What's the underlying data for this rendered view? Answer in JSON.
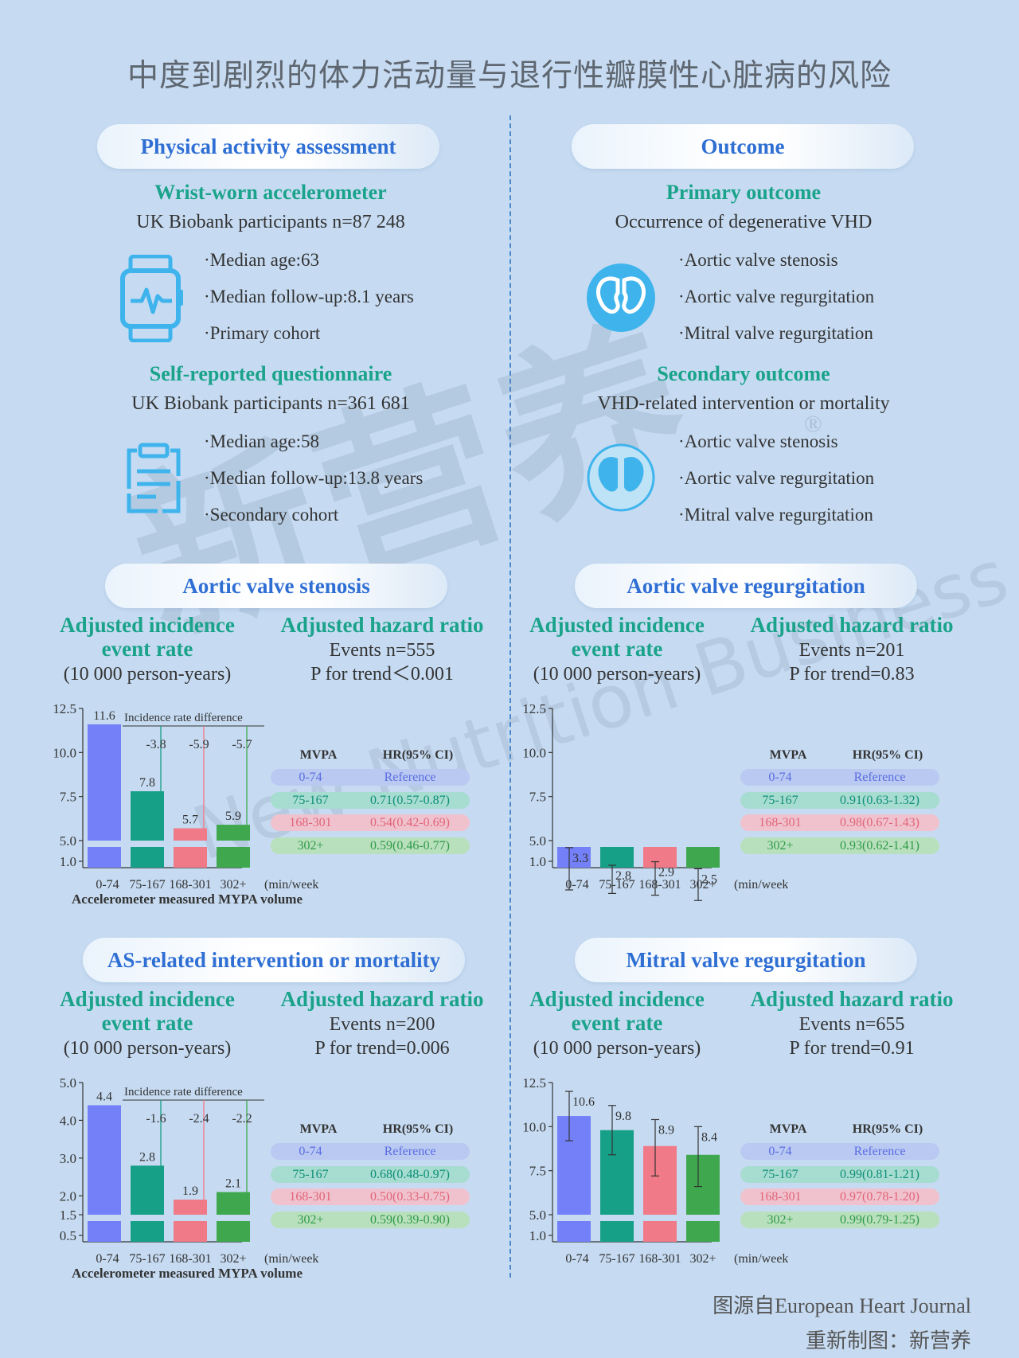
{
  "title": "中度到剧烈的体力活动量与退行性瓣膜性心脏病的风险",
  "watermark": {
    "main": "新营养",
    "sub": "New Nutrition Business",
    "reg": "®"
  },
  "pa": {
    "pill": "Physical activity assessment",
    "acc": {
      "head": "Wrist-worn accelerometer",
      "sub": "UK Biobank participants  n=87 248",
      "items": [
        "·Median age:63",
        "·Median follow-up:8.1 years",
        "·Primary cohort"
      ],
      "icon": "smartwatch-icon"
    },
    "sr": {
      "head": "Self-reported questionnaire",
      "sub": "UK Biobank participants  n=361 681",
      "items": [
        "·Median age:58",
        "·Median follow-up:13.8 years",
        "·Secondary cohort"
      ],
      "icon": "clipboard-icon"
    }
  },
  "oc": {
    "pill": "Outcome",
    "primary": {
      "head": "Primary outcome",
      "sub": "Occurrence of degenerative VHD",
      "items": [
        "·Aortic valve stenosis",
        "·Aortic valve regurgitation",
        "·Mitral valve regurgitation"
      ],
      "icon": "heart-valve-icon"
    },
    "secondary": {
      "head": "Secondary outcome",
      "sub": "VHD-related intervention or mortality",
      "items": [
        "·Aortic valve stenosis",
        "·Aortic valve regurgitation",
        "·Mitral valve regurgitation"
      ],
      "icon": "heart-valve-outline-icon"
    }
  },
  "common": {
    "inc_head1": "Adjusted incidence",
    "inc_head2": "event rate",
    "inc_unit": "(10 000 person-years)",
    "hr_head": "Adjusted hazard ratio",
    "col_mvpa": "MVPA",
    "col_hr": "HR(95% CI)",
    "unit_label": "(min/week)",
    "xaxis_label": "Accelerometer measured MYPA volume",
    "diff_label": "Incidence rate difference"
  },
  "colors": {
    "c0": "#7380f8",
    "c1": "#17a088",
    "c2": "#f07a88",
    "c3": "#3fa84e"
  },
  "chart_data": [
    {
      "type": "bar",
      "title": "Aortic valve stenosis",
      "events": "Events n=555",
      "ptrend": "P for trend＜0.001",
      "categories": [
        "0-74",
        "75-167",
        "168-301",
        "302+"
      ],
      "values": [
        11.6,
        7.8,
        5.7,
        5.9
      ],
      "value_labels": [
        "11.6",
        "7.8",
        "5.7",
        "5.9"
      ],
      "diffs": [
        "-3.8",
        "-5.9",
        "-5.7"
      ],
      "yticks": [
        "12.5",
        "10.0",
        "7.5",
        "5.0",
        "1.0"
      ],
      "ylim": [
        1.0,
        12.5
      ],
      "show_xlabel": true,
      "error_bars": false,
      "hr": [
        {
          "mvpa": "0-74",
          "hr": "Reference"
        },
        {
          "mvpa": "75-167",
          "hr": "0.71(0.57-0.87)"
        },
        {
          "mvpa": "168-301",
          "hr": "0.54(0.42-0.69)"
        },
        {
          "mvpa": "302+",
          "hr": "0.59(0.46-0.77)"
        }
      ]
    },
    {
      "type": "bar",
      "title": "Aortic valve regurgitation",
      "events": "Events n=201",
      "ptrend": "P for trend=0.83",
      "categories": [
        "0-74",
        "75-167",
        "168-301",
        "302+"
      ],
      "values": [
        3.3,
        2.8,
        2.9,
        2.5
      ],
      "value_labels": [
        "3.3",
        "2.8",
        "2.9",
        "2.5"
      ],
      "errors": [
        [
          2.2,
          4.6
        ],
        [
          2.0,
          3.6
        ],
        [
          1.9,
          3.8
        ],
        [
          1.6,
          3.4
        ]
      ],
      "diffs": [],
      "yticks": [
        "12.5",
        "10.0",
        "7.5",
        "5.0",
        "1.0"
      ],
      "ylim": [
        1.0,
        12.5
      ],
      "show_xlabel": false,
      "error_bars": true,
      "hr": [
        {
          "mvpa": "0-74",
          "hr": "Reference"
        },
        {
          "mvpa": "75-167",
          "hr": "0.91(0.63-1.32)"
        },
        {
          "mvpa": "168-301",
          "hr": "0.98(0.67-1.43)"
        },
        {
          "mvpa": "302+",
          "hr": "0.93(0.62-1.41)"
        }
      ]
    },
    {
      "type": "bar",
      "title": "AS-related intervention or mortality",
      "events": "Events n=200",
      "ptrend": "P for trend=0.006",
      "categories": [
        "0-74",
        "75-167",
        "168-301",
        "302+"
      ],
      "values": [
        4.4,
        2.8,
        1.9,
        2.1
      ],
      "value_labels": [
        "4.4",
        "2.8",
        "1.9",
        "2.1"
      ],
      "diffs": [
        "-1.6",
        "-2.4",
        "-2.2"
      ],
      "yticks": [
        "5.0",
        "4.0",
        "3.0",
        "2.0",
        "1.5",
        "0.5"
      ],
      "ylim": [
        0.5,
        5.0
      ],
      "show_xlabel": true,
      "error_bars": false,
      "hr": [
        {
          "mvpa": "0-74",
          "hr": "Reference"
        },
        {
          "mvpa": "75-167",
          "hr": "0.68(0.48-0.97)"
        },
        {
          "mvpa": "168-301",
          "hr": "0.50(0.33-0.75)"
        },
        {
          "mvpa": "302+",
          "hr": "0.59(0.39-0.90)"
        }
      ]
    },
    {
      "type": "bar",
      "title": "Mitral valve regurgitation",
      "events": "Events n=655",
      "ptrend": "P for trend=0.91",
      "categories": [
        "0-74",
        "75-167",
        "168-301",
        "302+"
      ],
      "values": [
        10.6,
        9.8,
        8.9,
        8.4
      ],
      "value_labels": [
        "10.6",
        "9.8",
        "8.9",
        "8.4"
      ],
      "errors": [
        [
          9.2,
          12.0
        ],
        [
          8.4,
          11.2
        ],
        [
          7.2,
          10.4
        ],
        [
          6.6,
          10.0
        ]
      ],
      "diffs": [],
      "yticks": [
        "12.5",
        "10.0",
        "7.5",
        "5.0",
        "1.0"
      ],
      "ylim": [
        1.0,
        12.5
      ],
      "show_xlabel": false,
      "error_bars": true,
      "hr": [
        {
          "mvpa": "0-74",
          "hr": "Reference"
        },
        {
          "mvpa": "75-167",
          "hr": "0.99(0.81-1.21)"
        },
        {
          "mvpa": "168-301",
          "hr": "0.97(0.78-1.20)"
        },
        {
          "mvpa": "302+",
          "hr": "0.99(0.79-1.25)"
        }
      ]
    }
  ],
  "footer": {
    "source": "图源自European Heart Journal",
    "credit": "重新制图：新营养"
  }
}
